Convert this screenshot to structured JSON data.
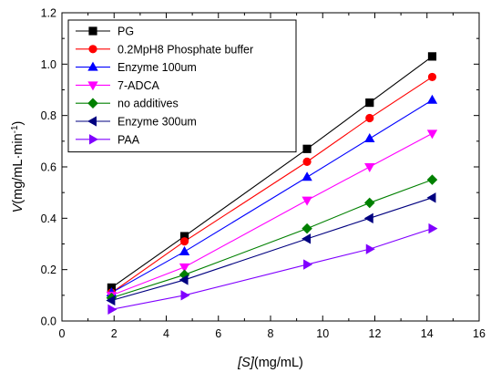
{
  "chart_data": {
    "type": "line",
    "xlabel": {
      "italic": "[S]",
      "rest": "(mg/mL)"
    },
    "ylabel": {
      "italic": "V",
      "rest": "(mg/mL·min",
      "sup": "-1",
      "close": ")"
    },
    "xlim": [
      0,
      16
    ],
    "ylim": [
      0.0,
      1.2
    ],
    "xticks": [
      0,
      2,
      4,
      6,
      8,
      10,
      12,
      14,
      16
    ],
    "yticks": [
      0.0,
      0.2,
      0.4,
      0.6,
      0.8,
      1.0,
      1.2
    ],
    "xtick_labels": [
      "0",
      "2",
      "4",
      "6",
      "8",
      "10",
      "12",
      "14",
      "16"
    ],
    "ytick_labels": [
      "0.0",
      "0.2",
      "0.4",
      "0.6",
      "0.8",
      "1.0",
      "1.2"
    ],
    "grid": false,
    "legend_position": "top-left",
    "x": [
      1.9,
      4.7,
      9.4,
      11.8,
      14.2
    ],
    "series": [
      {
        "name": "PG",
        "color": "#000000",
        "marker": "square",
        "values": [
          0.13,
          0.33,
          0.67,
          0.85,
          1.03
        ]
      },
      {
        "name": "0.2MpH8  Phosphate buffer",
        "color": "#ff0000",
        "marker": "circle",
        "values": [
          0.11,
          0.31,
          0.62,
          0.79,
          0.95
        ]
      },
      {
        "name": "Enzyme 100um",
        "color": "#0000ff",
        "marker": "triangle-up",
        "values": [
          0.11,
          0.27,
          0.56,
          0.71,
          0.86
        ]
      },
      {
        "name": "7-ADCA",
        "color": "#ff00ff",
        "marker": "triangle-down",
        "values": [
          0.1,
          0.21,
          0.47,
          0.6,
          0.73
        ]
      },
      {
        "name": "no additives",
        "color": "#008000",
        "marker": "diamond",
        "values": [
          0.09,
          0.18,
          0.36,
          0.46,
          0.55
        ]
      },
      {
        "name": "Enzyme 300um",
        "color": "#000080",
        "marker": "triangle-left",
        "values": [
          0.08,
          0.16,
          0.32,
          0.4,
          0.48
        ]
      },
      {
        "name": "PAA",
        "color": "#8000ff",
        "marker": "triangle-right",
        "values": [
          0.045,
          0.1,
          0.22,
          0.28,
          0.36
        ]
      }
    ]
  }
}
